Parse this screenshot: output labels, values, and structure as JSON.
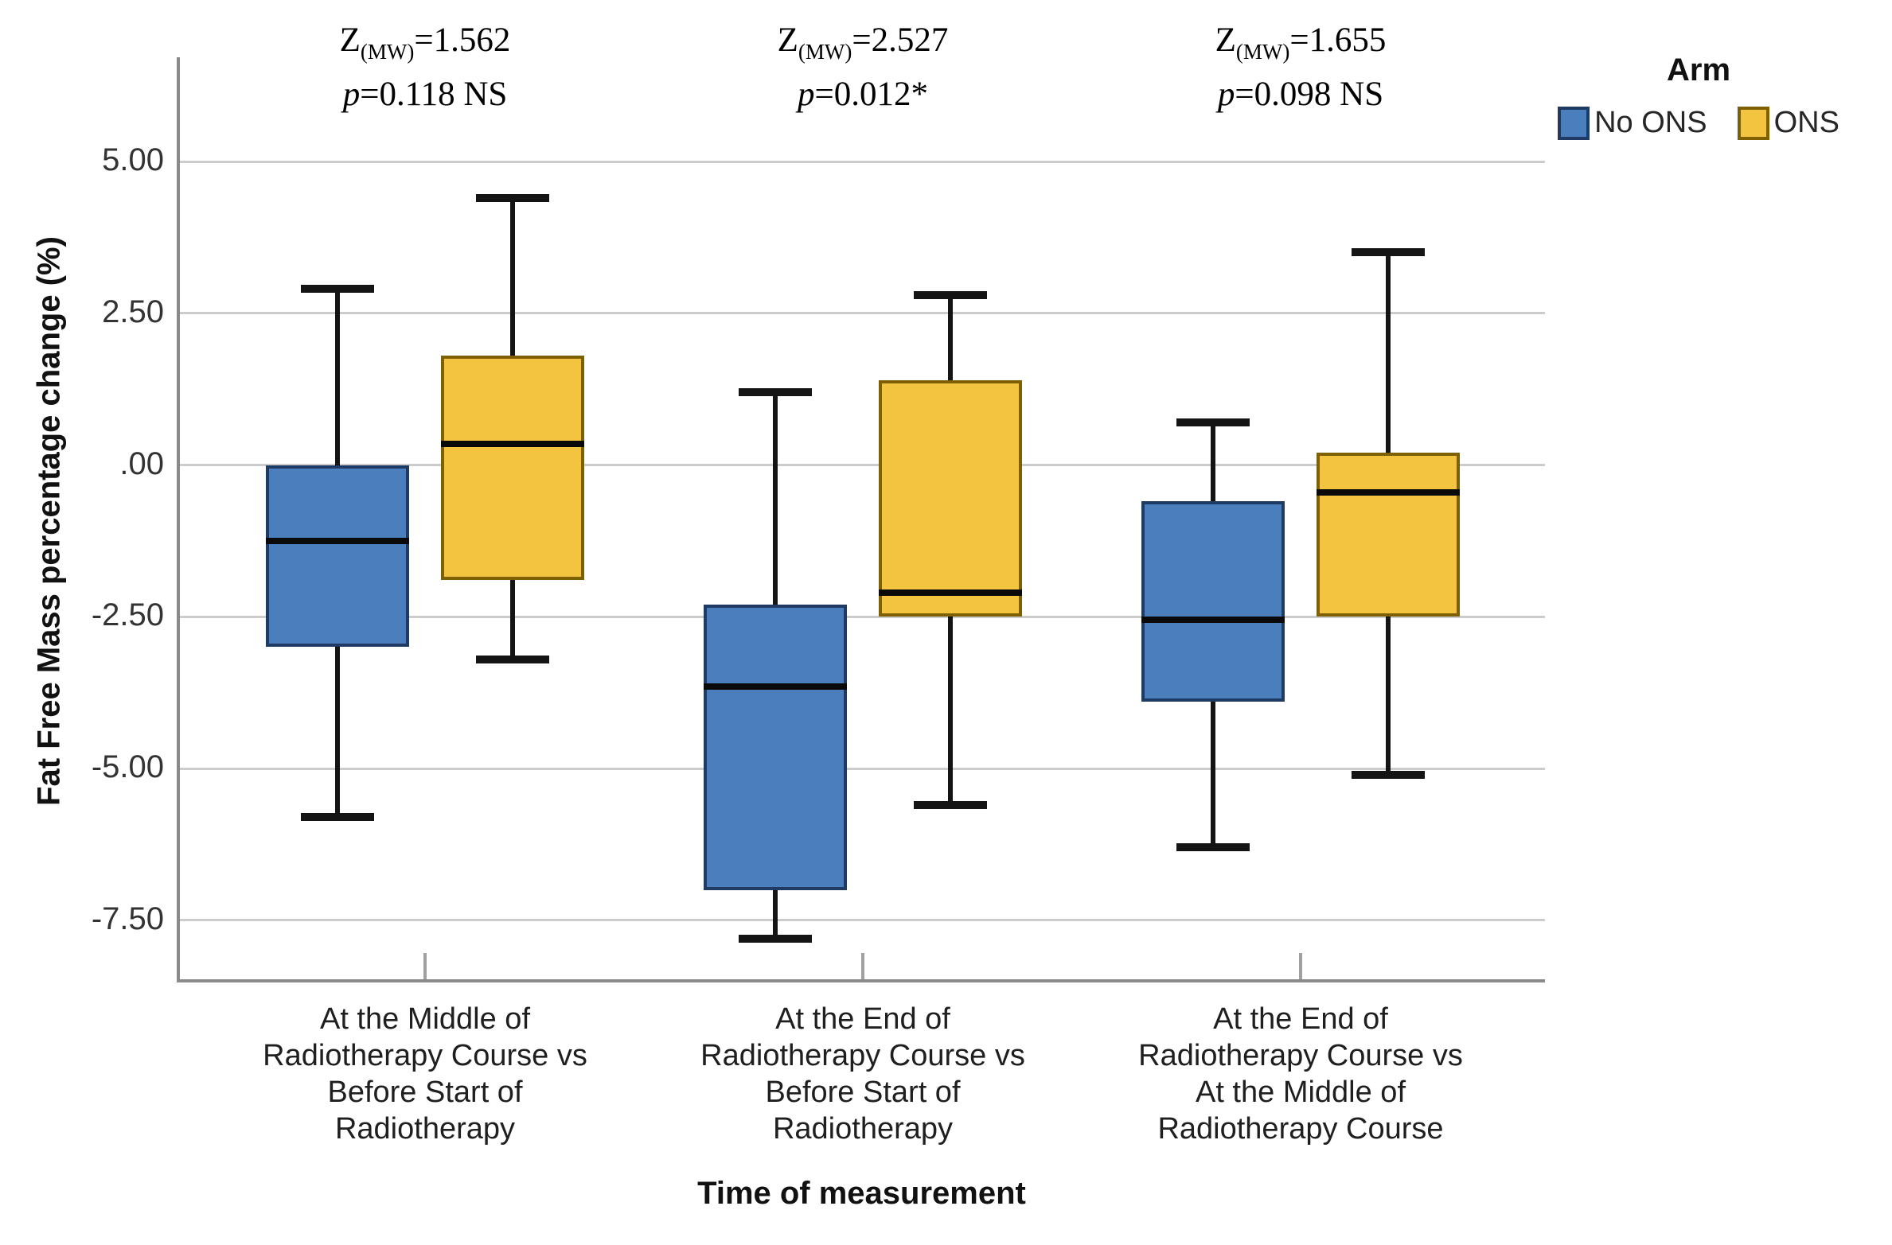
{
  "chart_data": {
    "type": "boxplot",
    "xlabel": "Time of measurement",
    "ylabel": "Fat Free Mass percentage change (%)",
    "ylim": [
      -8.5,
      6.5
    ],
    "grid": "horizontal",
    "yticks": [
      {
        "label": "5.00",
        "value": 5.0
      },
      {
        "label": "2.50",
        "value": 2.5
      },
      {
        "label": ".00",
        "value": 0.0
      },
      {
        "label": "-2.50",
        "value": -2.5
      },
      {
        "label": "-5.00",
        "value": -5.0
      },
      {
        "label": "-7.50",
        "value": -7.5
      }
    ],
    "categories": [
      [
        "At the Middle of",
        "Radiotherapy Course vs",
        "Before Start of",
        "Radiotherapy"
      ],
      [
        "At the End of",
        "Radiotherapy Course vs",
        "Before Start of",
        "Radiotherapy"
      ],
      [
        "At the End of",
        "Radiotherapy Course vs",
        "At the Middle of",
        "Radiotherapy Course"
      ]
    ],
    "series": [
      {
        "name": "No ONS",
        "fill_color": "#4a7ebd",
        "border_color": "#1f3a63",
        "boxes": [
          {
            "whisker_low": -5.8,
            "q1": -3.0,
            "median": -1.25,
            "q3": 0.0,
            "whisker_high": 2.9
          },
          {
            "whisker_low": -7.8,
            "q1": -7.0,
            "median": -3.65,
            "q3": -2.3,
            "whisker_high": 1.2
          },
          {
            "whisker_low": -6.3,
            "q1": -3.9,
            "median": -2.55,
            "q3": -0.6,
            "whisker_high": 0.7
          }
        ]
      },
      {
        "name": "ONS",
        "fill_color": "#f3c440",
        "border_color": "#7f6000",
        "boxes": [
          {
            "whisker_low": -3.2,
            "q1": -1.9,
            "median": 0.35,
            "q3": 1.8,
            "whisker_high": 4.4
          },
          {
            "whisker_low": -5.6,
            "q1": -2.5,
            "median": -2.1,
            "q3": 1.4,
            "whisker_high": 2.8
          },
          {
            "whisker_low": -5.1,
            "q1": -2.5,
            "median": -0.45,
            "q3": 0.2,
            "whisker_high": 3.5
          }
        ]
      }
    ],
    "annotations": [
      {
        "z_label": "Z",
        "z_sub": "(MW)",
        "z_eq": "=1.562",
        "p_label": "p",
        "p_value": "=0.118 NS"
      },
      {
        "z_label": "Z",
        "z_sub": "(MW)",
        "z_eq": "=2.527",
        "p_label": "p",
        "p_value": "=0.012*"
      },
      {
        "z_label": "Z",
        "z_sub": "(MW)",
        "z_eq": "=1.655",
        "p_label": "p",
        "p_value": "=0.098 NS"
      }
    ]
  },
  "legend": {
    "title": "Arm",
    "items": [
      {
        "label": "No ONS",
        "color": "#4a7ebd",
        "border": "#1f3a63"
      },
      {
        "label": "ONS",
        "color": "#f3c440",
        "border": "#7f6000"
      }
    ]
  },
  "axis_colors": {
    "axis_line": "#8a8a8a",
    "gridline": "#cccccc",
    "tick_text": "#333333"
  }
}
